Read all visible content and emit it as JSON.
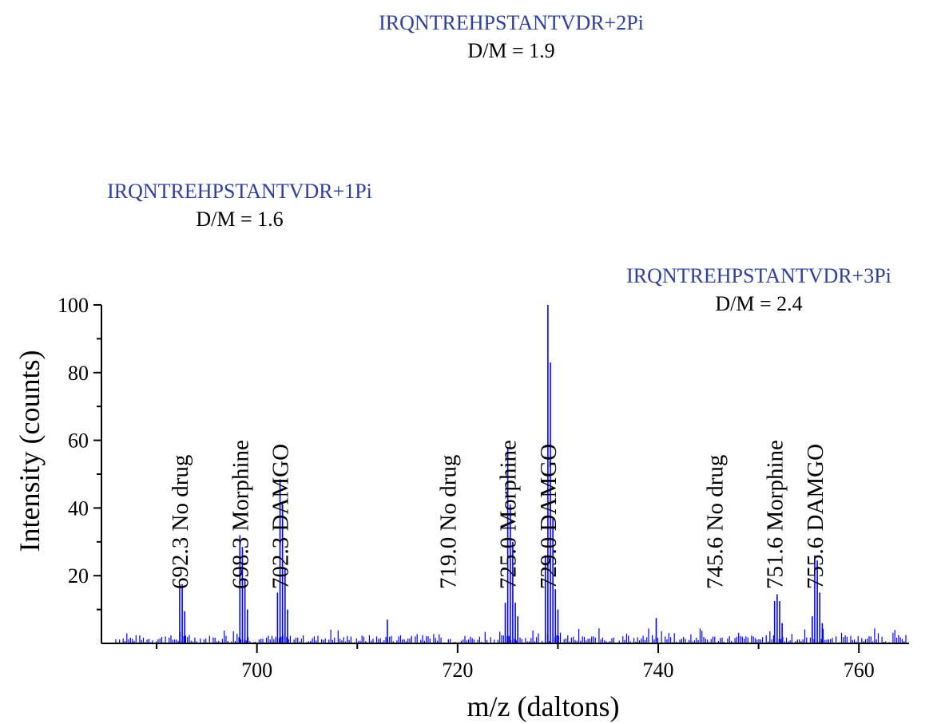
{
  "chart_data": {
    "type": "line",
    "xlabel": "m/z (daltons)",
    "ylabel": "Intensity (counts)",
    "xlim": [
      684.5,
      765
    ],
    "ylim": [
      0,
      100
    ],
    "x_ticks": [
      700,
      720,
      740,
      760
    ],
    "x_minor_ticks": [
      690,
      710,
      730,
      750
    ],
    "y_ticks": [
      20,
      40,
      60,
      80,
      100
    ],
    "series_color": "#0000ff",
    "baseline_noise_max": 2.5,
    "peaks": [
      {
        "x": 692.3,
        "y": 17.5
      },
      {
        "x": 692.55,
        "y": 17.5
      },
      {
        "x": 692.8,
        "y": 9.5
      },
      {
        "x": 698.3,
        "y": 32
      },
      {
        "x": 698.55,
        "y": 28.5
      },
      {
        "x": 698.8,
        "y": 19
      },
      {
        "x": 699.05,
        "y": 10
      },
      {
        "x": 702.05,
        "y": 15
      },
      {
        "x": 702.3,
        "y": 48.5
      },
      {
        "x": 702.55,
        "y": 41
      },
      {
        "x": 702.8,
        "y": 22
      },
      {
        "x": 703.05,
        "y": 10
      },
      {
        "x": 713,
        "y": 7
      },
      {
        "x": 724.75,
        "y": 12
      },
      {
        "x": 725.0,
        "y": 58
      },
      {
        "x": 725.25,
        "y": 41
      },
      {
        "x": 725.5,
        "y": 30
      },
      {
        "x": 725.75,
        "y": 12
      },
      {
        "x": 726.0,
        "y": 8
      },
      {
        "x": 728.75,
        "y": 26
      },
      {
        "x": 729.0,
        "y": 100
      },
      {
        "x": 729.25,
        "y": 83
      },
      {
        "x": 729.5,
        "y": 37
      },
      {
        "x": 729.75,
        "y": 16
      },
      {
        "x": 730.0,
        "y": 10
      },
      {
        "x": 739.8,
        "y": 7.5
      },
      {
        "x": 751.6,
        "y": 12.5
      },
      {
        "x": 751.85,
        "y": 14.5
      },
      {
        "x": 752.1,
        "y": 12.5
      },
      {
        "x": 752.35,
        "y": 6
      },
      {
        "x": 755.35,
        "y": 8
      },
      {
        "x": 755.6,
        "y": 26
      },
      {
        "x": 755.85,
        "y": 24.5
      },
      {
        "x": 756.1,
        "y": 15
      },
      {
        "x": 756.35,
        "y": 6
      }
    ],
    "annotations": [
      {
        "x": 692.3,
        "label": "692.3  No drug"
      },
      {
        "x": 698.3,
        "label": "698.3  Morphine"
      },
      {
        "x": 702.3,
        "label": "702.3  DAMGO"
      },
      {
        "x": 719.0,
        "label": "719.0  No drug"
      },
      {
        "x": 725.0,
        "label": "725.0  Morphine"
      },
      {
        "x": 729.0,
        "label": "729.0  DAMGO"
      },
      {
        "x": 745.6,
        "label": "745.6  No drug"
      },
      {
        "x": 751.6,
        "label": "751.6  Morphine"
      },
      {
        "x": 755.6,
        "label": "755.6  DAMGO"
      }
    ],
    "groups": [
      {
        "sequence": "IRQNTREHPSTANTVDR+1Pi",
        "ratio": "D/M = 1.6"
      },
      {
        "sequence": "IRQNTREHPSTANTVDR+2Pi",
        "ratio": "D/M = 1.9"
      },
      {
        "sequence": "IRQNTREHPSTANTVDR+3Pi",
        "ratio": "D/M = 2.4"
      }
    ]
  }
}
